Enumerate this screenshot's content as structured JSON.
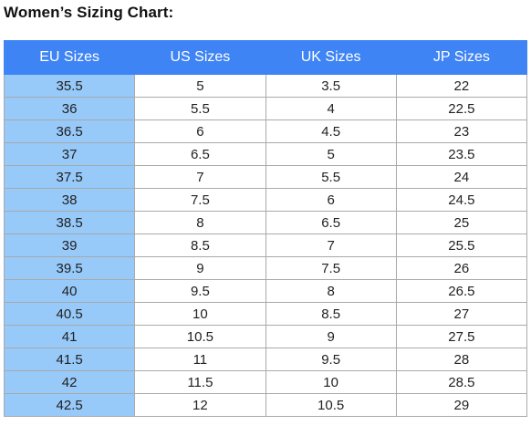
{
  "title": "Women’s Sizing Chart:",
  "table": {
    "headers": [
      "EU Sizes",
      "US Sizes",
      "UK Sizes",
      "JP Sizes"
    ],
    "rows": [
      [
        "35.5",
        "5",
        "3.5",
        "22"
      ],
      [
        "36",
        "5.5",
        "4",
        "22.5"
      ],
      [
        "36.5",
        "6",
        "4.5",
        "23"
      ],
      [
        "37",
        "6.5",
        "5",
        "23.5"
      ],
      [
        "37.5",
        "7",
        "5.5",
        "24"
      ],
      [
        "38",
        "7.5",
        "6",
        "24.5"
      ],
      [
        "38.5",
        "8",
        "6.5",
        "25"
      ],
      [
        "39",
        "8.5",
        "7",
        "25.5"
      ],
      [
        "39.5",
        "9",
        "7.5",
        "26"
      ],
      [
        "40",
        "9.5",
        "8",
        "26.5"
      ],
      [
        "40.5",
        "10",
        "8.5",
        "27"
      ],
      [
        "41",
        "10.5",
        "9",
        "27.5"
      ],
      [
        "41.5",
        "11",
        "9.5",
        "28"
      ],
      [
        "42",
        "11.5",
        "10",
        "28.5"
      ],
      [
        "42.5",
        "12",
        "10.5",
        "29"
      ]
    ]
  },
  "colors": {
    "header_background": "#3f84f4",
    "eu_column_background": "#97c9f9",
    "border": "#a9a9a9"
  }
}
